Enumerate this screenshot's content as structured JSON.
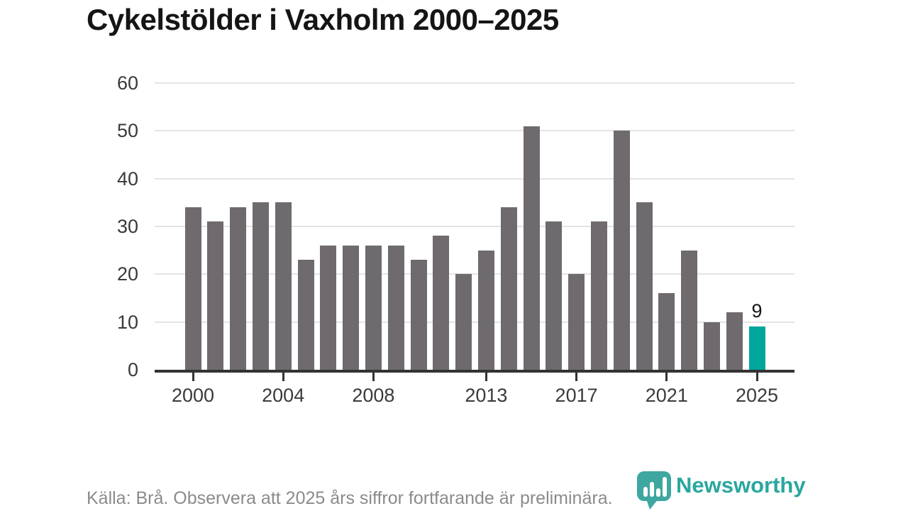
{
  "title": "Cykelstölder i Vaxholm 2000–2025",
  "chart_data": {
    "type": "bar",
    "title": "Cykelstölder i Vaxholm 2000–2025",
    "xlabel": "",
    "ylabel": "",
    "x": [
      2000,
      2001,
      2002,
      2003,
      2004,
      2005,
      2006,
      2007,
      2008,
      2009,
      2010,
      2011,
      2012,
      2013,
      2014,
      2015,
      2016,
      2017,
      2018,
      2019,
      2020,
      2021,
      2022,
      2023,
      2024,
      2025
    ],
    "values": [
      34,
      31,
      34,
      35,
      35,
      23,
      26,
      26,
      26,
      26,
      23,
      28,
      20,
      25,
      34,
      51,
      31,
      20,
      31,
      50,
      35,
      16,
      25,
      10,
      12,
      9
    ],
    "ylim": [
      0,
      60
    ],
    "y_ticks": [
      0,
      10,
      20,
      30,
      40,
      50,
      60
    ],
    "x_tick_labels": [
      2000,
      2004,
      2008,
      2013,
      2017,
      2021,
      2025
    ],
    "grid": "horizontal",
    "legend": "none",
    "bar_color": "#6e6a6e",
    "highlight": {
      "year": 2025,
      "value": 9,
      "label": "9",
      "color": "#00a69b"
    }
  },
  "footer": {
    "source_text": "Källa: Brå. Observera att 2025 års siffror fortfarande är preliminära.",
    "brand_name": "Newsworthy",
    "brand_color": "#2aa79f"
  },
  "colors": {
    "bar": "#6e6a6e",
    "highlight": "#00a69b",
    "axis": "#333333",
    "gridline": "#e4e4e4",
    "title_text": "#151515",
    "axis_label_text": "#3a3a3a",
    "source_text": "#8b8b8b",
    "logo_icon": "#3ea7a0"
  }
}
